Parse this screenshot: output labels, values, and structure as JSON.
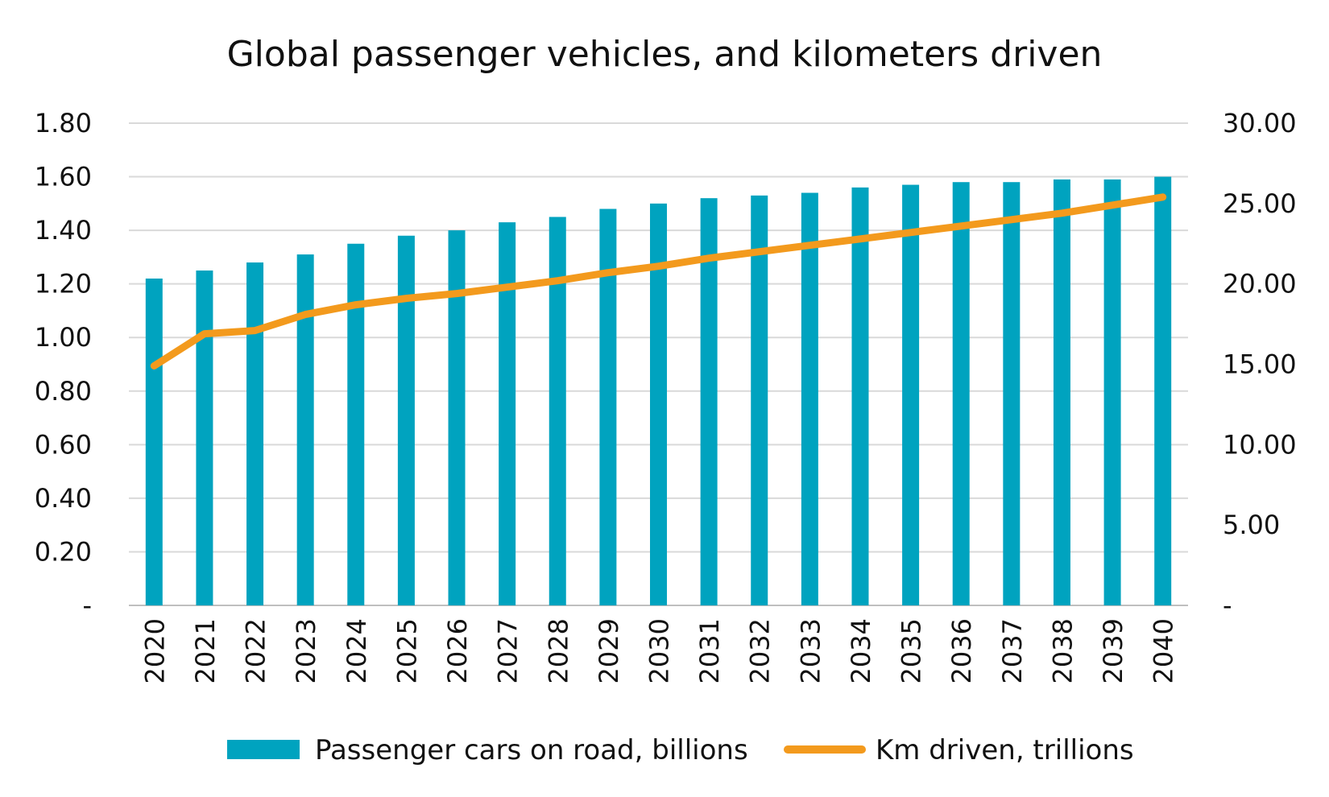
{
  "chart_data": {
    "type": "bar",
    "title": "Global passenger vehicles, and kilometers driven",
    "categories": [
      "2020",
      "2021",
      "2022",
      "2023",
      "2024",
      "2025",
      "2026",
      "2027",
      "2028",
      "2029",
      "2030",
      "2031",
      "2032",
      "2033",
      "2034",
      "2035",
      "2036",
      "2037",
      "2038",
      "2039",
      "2040"
    ],
    "series": [
      {
        "name": "Passenger cars on road, billions",
        "type": "bar",
        "axis": "left",
        "color": "#00a3bf",
        "values": [
          1.22,
          1.25,
          1.28,
          1.31,
          1.35,
          1.38,
          1.4,
          1.43,
          1.45,
          1.48,
          1.5,
          1.52,
          1.53,
          1.54,
          1.56,
          1.57,
          1.58,
          1.58,
          1.59,
          1.59,
          1.6
        ]
      },
      {
        "name": "Km driven, trillions",
        "type": "line",
        "axis": "right",
        "color": "#f39a1d",
        "values": [
          14.9,
          16.9,
          17.1,
          18.1,
          18.7,
          19.1,
          19.4,
          19.8,
          20.2,
          20.7,
          21.1,
          21.6,
          22.0,
          22.4,
          22.8,
          23.2,
          23.6,
          24.0,
          24.4,
          24.9,
          25.4
        ]
      }
    ],
    "y_left": {
      "min": 0,
      "max": 1.8,
      "ticks": [
        0,
        0.2,
        0.4,
        0.6,
        0.8,
        1.0,
        1.2,
        1.4,
        1.6,
        1.8
      ],
      "tick_labels": [
        "-",
        "0.20",
        "0.40",
        "0.60",
        "0.80",
        "1.00",
        "1.20",
        "1.40",
        "1.60",
        "1.80"
      ]
    },
    "y_right": {
      "min": 0,
      "max": 30,
      "ticks": [
        0,
        5,
        10,
        15,
        20,
        25,
        30
      ],
      "tick_labels": [
        "-",
        "5.00",
        "10.00",
        "15.00",
        "20.00",
        "25.00",
        "30.00"
      ]
    },
    "grid": true,
    "legend_position": "bottom"
  }
}
